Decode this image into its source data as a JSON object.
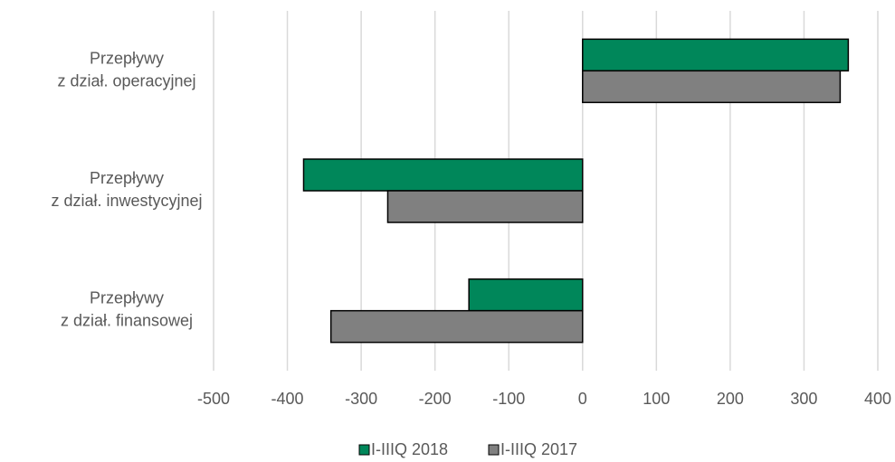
{
  "chart_data": {
    "type": "bar",
    "orientation": "horizontal",
    "categories": [
      [
        "Przepływy",
        "z dział. operacyjnej"
      ],
      [
        "Przepływy",
        "z dział. inwestycyjnej"
      ],
      [
        "Przepływy",
        "z dział. finansowej"
      ]
    ],
    "series": [
      {
        "name": "I-IIIQ 2018",
        "color": "#00875A",
        "values": [
          360,
          -378,
          -154
        ]
      },
      {
        "name": "I-IIIQ 2017",
        "color": "#808080",
        "values": [
          349,
          -264,
          -341
        ]
      }
    ],
    "xlim": [
      -500,
      400
    ],
    "xticks": [
      -500,
      -400,
      -300,
      -200,
      -100,
      0,
      100,
      200,
      300,
      400
    ],
    "grid": "vertical",
    "legend_position": "bottom"
  }
}
